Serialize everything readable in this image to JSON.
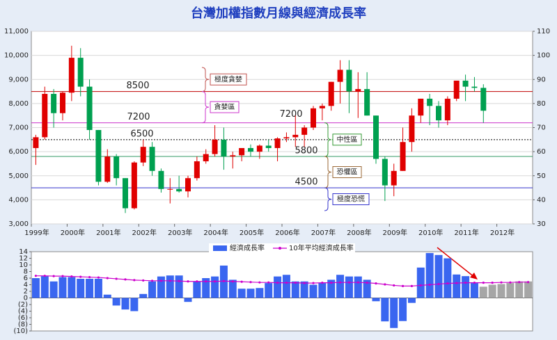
{
  "chart_data": [
    {
      "type": "candlestick",
      "title": "台灣加權指數月線與經濟成長率",
      "xlim": [
        1999,
        2013
      ],
      "xticks": [
        {
          "value": 1999,
          "label": "1999年"
        },
        {
          "value": 2000,
          "label": "2000年"
        },
        {
          "value": 2001,
          "label": "2001年"
        },
        {
          "value": 2002,
          "label": "2002年"
        },
        {
          "value": 2003,
          "label": "2003年"
        },
        {
          "value": 2004,
          "label": "2004年"
        },
        {
          "value": 2005,
          "label": "2005年"
        },
        {
          "value": 2006,
          "label": "2006年"
        },
        {
          "value": 2007,
          "label": "2007年"
        },
        {
          "value": 2008,
          "label": "2008年"
        },
        {
          "value": 2009,
          "label": "2009年"
        },
        {
          "value": 2010,
          "label": "2010年"
        },
        {
          "value": 2011,
          "label": "2011年"
        },
        {
          "value": 2012,
          "label": "2012年"
        }
      ],
      "ylim": [
        3000,
        11000
      ],
      "yticks": [
        {
          "value": 3000,
          "label": "3,000"
        },
        {
          "value": 4000,
          "label": "4,000"
        },
        {
          "value": 5000,
          "label": "5,000"
        },
        {
          "value": 6000,
          "label": "6,000"
        },
        {
          "value": 7000,
          "label": "7,000"
        },
        {
          "value": 8000,
          "label": "8,000"
        },
        {
          "value": 9000,
          "label": "9,000"
        },
        {
          "value": 10000,
          "label": "10,000"
        },
        {
          "value": 11000,
          "label": "11,000"
        }
      ],
      "y2lim": [
        30,
        110
      ],
      "y2ticks": [
        30,
        40,
        50,
        60,
        70,
        80,
        90,
        100,
        110
      ],
      "up_color": "#e00000",
      "down_color": "#00a050",
      "open": [
        6150,
        6600,
        8400,
        7600,
        8450,
        9900,
        8700,
        6900,
        4750,
        5800,
        4900,
        3650,
        5550,
        6200,
        5200,
        4450,
        4450,
        4350,
        4900,
        5600,
        5900,
        6500,
        5800,
        5850,
        6150,
        6000,
        6250,
        6150,
        6550,
        6600,
        6700,
        7000,
        7800,
        7900,
        8900,
        9400,
        8500,
        8600,
        7500,
        5700,
        4600,
        5200,
        6400,
        7500,
        8200,
        7900,
        7300,
        8200,
        8950,
        8700,
        8650
      ],
      "high": [
        6700,
        8700,
        8600,
        8500,
        10400,
        10300,
        9000,
        6900,
        6100,
        5900,
        4900,
        5600,
        6500,
        6400,
        5300,
        4900,
        5000,
        5000,
        5800,
        6100,
        7100,
        7000,
        6000,
        6100,
        6300,
        6300,
        6500,
        6600,
        6800,
        7500,
        7100,
        7900,
        8000,
        8900,
        9800,
        9800,
        9300,
        9300,
        7500,
        5800,
        5500,
        7000,
        7800,
        8200,
        8400,
        8100,
        8300,
        8900,
        9200,
        9100,
        8800
      ],
      "low": [
        5450,
        6500,
        7000,
        7300,
        8100,
        8300,
        6500,
        4600,
        4700,
        4600,
        3450,
        3600,
        5400,
        5000,
        4300,
        3850,
        4300,
        4100,
        4800,
        5500,
        5800,
        5250,
        5300,
        5600,
        5800,
        5700,
        6000,
        5600,
        6400,
        6200,
        6200,
        6900,
        7300,
        7700,
        8000,
        7600,
        7400,
        7500,
        5500,
        3950,
        4150,
        5200,
        6000,
        7200,
        7100,
        7000,
        7100,
        8100,
        8100,
        8500,
        7200
      ],
      "close": [
        6600,
        8400,
        7600,
        8450,
        9900,
        8700,
        6900,
        4750,
        5800,
        4900,
        3650,
        5550,
        6200,
        5200,
        4450,
        4450,
        4350,
        4900,
        5600,
        5900,
        6500,
        5800,
        5850,
        6150,
        6000,
        6250,
        6150,
        6550,
        6600,
        6700,
        7000,
        7800,
        7900,
        8900,
        9400,
        8500,
        8600,
        7500,
        5700,
        4600,
        5200,
        6400,
        7500,
        8200,
        7900,
        7300,
        8200,
        8950,
        8700,
        8650,
        7700
      ],
      "reference_lines": [
        {
          "value": 8500,
          "labels": [
            "8500"
          ],
          "color": "#c00000",
          "style": "solid"
        },
        {
          "value": 7200,
          "labels": [
            "7200",
            "7200"
          ],
          "color": "#cc33cc",
          "style": "solid"
        },
        {
          "value": 6500,
          "labels": [
            "6500"
          ],
          "color": "#000000",
          "style": "dotted"
        },
        {
          "value": 5800,
          "labels": [
            "5800"
          ],
          "color": "#339966",
          "style": "solid"
        },
        {
          "value": 4500,
          "labels": [
            "4500"
          ],
          "color": "#3333cc",
          "style": "solid"
        }
      ],
      "zones": [
        {
          "label": "極度貪婪",
          "color": "#c0504d",
          "range": [
            8500,
            9500
          ]
        },
        {
          "label": "貪婪區",
          "color": "#cc33cc",
          "range": [
            7200,
            8500
          ]
        },
        {
          "label": "中性區",
          "color": "#339933",
          "range": [
            5800,
            7200
          ]
        },
        {
          "label": "恐懼區",
          "color": "#996633",
          "range": [
            4500,
            5800
          ]
        },
        {
          "label": "極度恐慌",
          "color": "#3333cc",
          "range": [
            3550,
            4500
          ]
        }
      ]
    },
    {
      "type": "bar",
      "xlim": [
        1999,
        2013
      ],
      "ylim": [
        -10,
        14
      ],
      "legend": "top",
      "negative_label_color": "#e00000",
      "yticks": [
        14,
        12,
        10,
        8,
        6,
        4,
        2,
        0,
        {
          "value": -2,
          "label": "(2)"
        },
        {
          "value": -4,
          "label": "(4)"
        },
        {
          "value": -6,
          "label": "(6)"
        },
        {
          "value": -8,
          "label": "(8)"
        },
        {
          "value": -10,
          "label": "(10)"
        }
      ],
      "series": [
        {
          "name": "經濟成長率",
          "type": "bar",
          "color": "#3a66f0",
          "values": [
            6.0,
            6.6,
            5.0,
            6.3,
            6.3,
            5.8,
            5.8,
            5.8,
            1.0,
            -2.3,
            -3.5,
            -4.0,
            1.2,
            5.0,
            6.5,
            6.8,
            6.8,
            -1.2,
            5.0,
            6.0,
            6.5,
            9.8,
            5.5,
            2.8,
            2.8,
            3.0,
            4.5,
            6.5,
            7.0,
            5.0,
            5.0,
            4.0,
            4.5,
            5.5,
            7.0,
            6.5,
            6.5,
            5.5,
            -1.0,
            -7.1,
            -9.1,
            -7.0,
            -1.5,
            9.2,
            13.6,
            13.0,
            12.0,
            7.1,
            6.6,
            4.5,
            3.4,
            4.0,
            4.2,
            4.5,
            5.0,
            5.0
          ],
          "colors": [
            "#3a66f0",
            "#3a66f0",
            "#3a66f0",
            "#3a66f0",
            "#3a66f0",
            "#3a66f0",
            "#3a66f0",
            "#3a66f0",
            "#3a66f0",
            "#3a66f0",
            "#3a66f0",
            "#3a66f0",
            "#3a66f0",
            "#3a66f0",
            "#3a66f0",
            "#3a66f0",
            "#3a66f0",
            "#3a66f0",
            "#3a66f0",
            "#3a66f0",
            "#3a66f0",
            "#3a66f0",
            "#3a66f0",
            "#3a66f0",
            "#3a66f0",
            "#3a66f0",
            "#3a66f0",
            "#3a66f0",
            "#3a66f0",
            "#3a66f0",
            "#3a66f0",
            "#3a66f0",
            "#3a66f0",
            "#3a66f0",
            "#3a66f0",
            "#3a66f0",
            "#3a66f0",
            "#3a66f0",
            "#3a66f0",
            "#3a66f0",
            "#3a66f0",
            "#3a66f0",
            "#3a66f0",
            "#3a66f0",
            "#3a66f0",
            "#3a66f0",
            "#3a66f0",
            "#3a66f0",
            "#3a66f0",
            "#3a66f0",
            "#a6a6a6",
            "#a6a6a6",
            "#a6a6a6",
            "#a6a6a6",
            "#a6a6a6",
            "#a6a6a6"
          ]
        },
        {
          "name": "10年平均經濟成長率",
          "type": "line",
          "color": "#cc00cc",
          "values": [
            6.7,
            6.7,
            6.6,
            6.6,
            6.5,
            6.4,
            6.3,
            6.2,
            6.0,
            5.8,
            5.6,
            5.4,
            5.3,
            5.2,
            5.2,
            5.2,
            5.1,
            5.0,
            5.0,
            5.0,
            5.0,
            5.1,
            5.0,
            4.9,
            4.8,
            4.7,
            4.7,
            4.6,
            4.6,
            4.6,
            4.5,
            4.5,
            4.6,
            4.6,
            4.7,
            4.7,
            4.7,
            4.6,
            4.4,
            4.1,
            3.8,
            3.6,
            3.6,
            3.8,
            4.0,
            4.2,
            4.4,
            4.5,
            4.6,
            4.6,
            4.6,
            4.6,
            4.7,
            4.7,
            4.8,
            4.8
          ]
        }
      ]
    }
  ]
}
